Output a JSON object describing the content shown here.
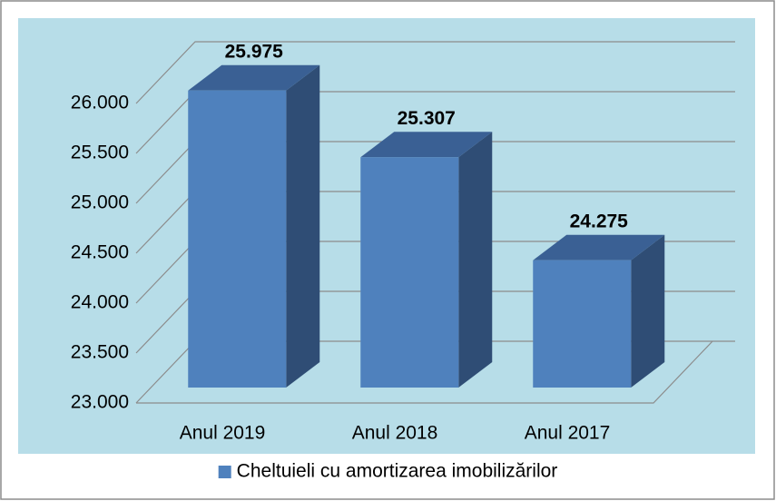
{
  "chart_data": {
    "type": "bar3d",
    "categories": [
      "Anul 2019",
      "Anul 2018",
      "Anul 2017"
    ],
    "series": [
      {
        "name": "Cheltuieli cu amortizarea imobilizărilor",
        "color": "#4f81bd",
        "values": [
          25975,
          25307,
          24275
        ],
        "value_labels": [
          "25.975",
          "25.307",
          "24.275"
        ]
      }
    ],
    "ylim": [
      23000,
      26000
    ],
    "yticks": [
      {
        "value": 23000,
        "label": "23.000"
      },
      {
        "value": 23500,
        "label": "23.500"
      },
      {
        "value": 24000,
        "label": "24.000"
      },
      {
        "value": 24500,
        "label": "24.500"
      },
      {
        "value": 25000,
        "label": "25.000"
      },
      {
        "value": 25500,
        "label": "25.500"
      },
      {
        "value": 26000,
        "label": "26.000"
      }
    ],
    "grid": true,
    "legend": "bottom"
  }
}
